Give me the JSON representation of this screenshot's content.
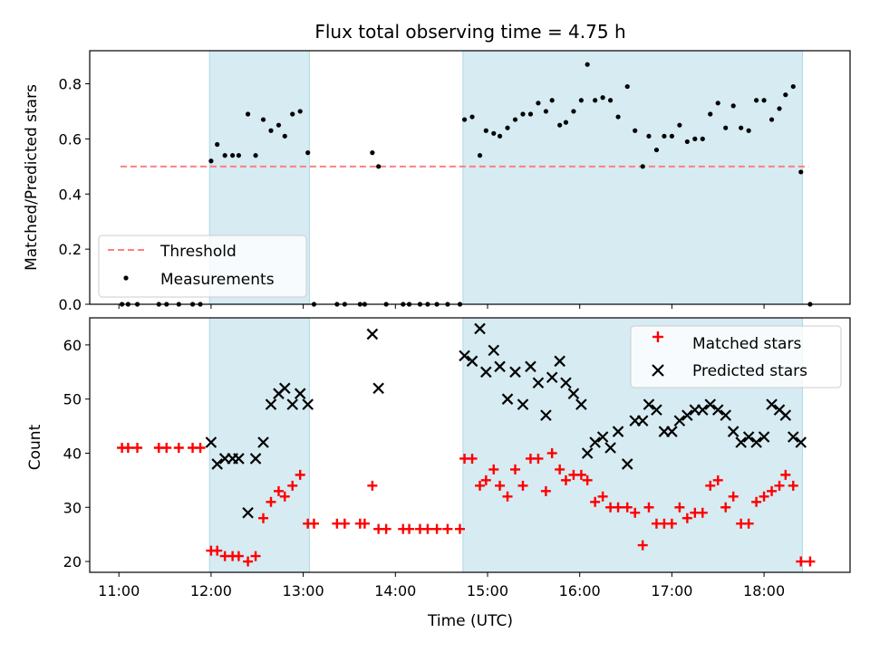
{
  "title": "Flux total observing time = 4.75 h",
  "colors": {
    "observing_band": "#add8e6",
    "threshold": "#ff7f7f",
    "measurement": "#000000",
    "matched": "#ff0000",
    "predicted": "#000000"
  },
  "chart_data": [
    {
      "type": "scatter",
      "panel": "top",
      "ylabel": "Matched/Predicted stars",
      "xlim": [
        "10:41",
        "18:56"
      ],
      "ylim": [
        0,
        0.92
      ],
      "yticks": [
        0.0,
        0.2,
        0.4,
        0.6,
        0.8
      ],
      "shaded_intervals": [
        [
          "11:59",
          "13:04"
        ],
        [
          "14:44",
          "18:25"
        ]
      ],
      "legend": {
        "position": "lower-left",
        "entries": [
          "Threshold",
          "Measurements"
        ]
      },
      "series": [
        {
          "name": "Threshold",
          "type": "line",
          "style": "dashed",
          "points": [
            [
              "11:01",
              0.5
            ],
            [
              "18:29",
              0.5
            ]
          ]
        },
        {
          "name": "Measurements",
          "type": "scatter",
          "points": [
            [
              "11:02",
              0.0
            ],
            [
              "11:06",
              0.0
            ],
            [
              "11:12",
              0.0
            ],
            [
              "11:26",
              0.0
            ],
            [
              "11:31",
              0.0
            ],
            [
              "11:39",
              0.0
            ],
            [
              "11:48",
              0.0
            ],
            [
              "11:53",
              0.0
            ],
            [
              "12:00",
              0.52
            ],
            [
              "12:04",
              0.58
            ],
            [
              "12:09",
              0.54
            ],
            [
              "12:14",
              0.54
            ],
            [
              "12:18",
              0.54
            ],
            [
              "12:24",
              0.69
            ],
            [
              "12:29",
              0.54
            ],
            [
              "12:34",
              0.67
            ],
            [
              "12:39",
              0.63
            ],
            [
              "12:44",
              0.65
            ],
            [
              "12:48",
              0.61
            ],
            [
              "12:53",
              0.69
            ],
            [
              "12:58",
              0.7
            ],
            [
              "13:03",
              0.55
            ],
            [
              "13:07",
              0.0
            ],
            [
              "13:22",
              0.0
            ],
            [
              "13:27",
              0.0
            ],
            [
              "13:37",
              0.0
            ],
            [
              "13:40",
              0.0
            ],
            [
              "13:45",
              0.55
            ],
            [
              "13:49",
              0.5
            ],
            [
              "13:54",
              0.0
            ],
            [
              "14:05",
              0.0
            ],
            [
              "14:09",
              0.0
            ],
            [
              "14:16",
              0.0
            ],
            [
              "14:21",
              0.0
            ],
            [
              "14:27",
              0.0
            ],
            [
              "14:34",
              0.0
            ],
            [
              "14:42",
              0.0
            ],
            [
              "14:45",
              0.67
            ],
            [
              "14:50",
              0.68
            ],
            [
              "14:55",
              0.54
            ],
            [
              "14:59",
              0.63
            ],
            [
              "15:04",
              0.62
            ],
            [
              "15:08",
              0.61
            ],
            [
              "15:13",
              0.64
            ],
            [
              "15:18",
              0.67
            ],
            [
              "15:23",
              0.69
            ],
            [
              "15:28",
              0.69
            ],
            [
              "15:33",
              0.73
            ],
            [
              "15:38",
              0.7
            ],
            [
              "15:42",
              0.74
            ],
            [
              "15:47",
              0.65
            ],
            [
              "15:51",
              0.66
            ],
            [
              "15:56",
              0.7
            ],
            [
              "16:01",
              0.74
            ],
            [
              "16:05",
              0.87
            ],
            [
              "16:10",
              0.74
            ],
            [
              "16:15",
              0.75
            ],
            [
              "16:20",
              0.74
            ],
            [
              "16:25",
              0.68
            ],
            [
              "16:31",
              0.79
            ],
            [
              "16:36",
              0.63
            ],
            [
              "16:41",
              0.5
            ],
            [
              "16:45",
              0.61
            ],
            [
              "16:50",
              0.56
            ],
            [
              "16:55",
              0.61
            ],
            [
              "17:00",
              0.61
            ],
            [
              "17:05",
              0.65
            ],
            [
              "17:10",
              0.59
            ],
            [
              "17:15",
              0.6
            ],
            [
              "17:20",
              0.6
            ],
            [
              "17:25",
              0.69
            ],
            [
              "17:30",
              0.73
            ],
            [
              "17:35",
              0.64
            ],
            [
              "17:40",
              0.72
            ],
            [
              "17:45",
              0.64
            ],
            [
              "17:50",
              0.63
            ],
            [
              "17:55",
              0.74
            ],
            [
              "18:00",
              0.74
            ],
            [
              "18:05",
              0.67
            ],
            [
              "18:10",
              0.71
            ],
            [
              "18:14",
              0.76
            ],
            [
              "18:19",
              0.79
            ],
            [
              "18:24",
              0.48
            ],
            [
              "18:30",
              0.0
            ]
          ]
        }
      ]
    },
    {
      "type": "scatter",
      "panel": "bottom",
      "xlabel": "Time (UTC)",
      "ylabel": "Count",
      "xlim": [
        "10:41",
        "18:56"
      ],
      "ylim": [
        18,
        65
      ],
      "xticks": [
        "11:00",
        "12:00",
        "13:00",
        "14:00",
        "15:00",
        "16:00",
        "17:00",
        "18:00"
      ],
      "yticks": [
        20,
        30,
        40,
        50,
        60
      ],
      "shaded_intervals": [
        [
          "11:59",
          "13:04"
        ],
        [
          "14:44",
          "18:25"
        ]
      ],
      "legend": {
        "position": "upper-right",
        "entries": [
          "Matched stars",
          "Predicted stars"
        ]
      },
      "series": [
        {
          "name": "Matched stars",
          "marker": "+",
          "points": [
            [
              "11:02",
              41
            ],
            [
              "11:06",
              41
            ],
            [
              "11:12",
              41
            ],
            [
              "11:26",
              41
            ],
            [
              "11:31",
              41
            ],
            [
              "11:39",
              41
            ],
            [
              "11:48",
              41
            ],
            [
              "11:53",
              41
            ],
            [
              "12:00",
              22
            ],
            [
              "12:04",
              22
            ],
            [
              "12:09",
              21
            ],
            [
              "12:14",
              21
            ],
            [
              "12:18",
              21
            ],
            [
              "12:24",
              20
            ],
            [
              "12:29",
              21
            ],
            [
              "12:34",
              28
            ],
            [
              "12:39",
              31
            ],
            [
              "12:44",
              33
            ],
            [
              "12:48",
              32
            ],
            [
              "12:53",
              34
            ],
            [
              "12:58",
              36
            ],
            [
              "13:03",
              27
            ],
            [
              "13:07",
              27
            ],
            [
              "13:22",
              27
            ],
            [
              "13:27",
              27
            ],
            [
              "13:37",
              27
            ],
            [
              "13:40",
              27
            ],
            [
              "13:45",
              34
            ],
            [
              "13:49",
              26
            ],
            [
              "13:54",
              26
            ],
            [
              "14:05",
              26
            ],
            [
              "14:09",
              26
            ],
            [
              "14:16",
              26
            ],
            [
              "14:21",
              26
            ],
            [
              "14:27",
              26
            ],
            [
              "14:34",
              26
            ],
            [
              "14:42",
              26
            ],
            [
              "14:45",
              39
            ],
            [
              "14:50",
              39
            ],
            [
              "14:55",
              34
            ],
            [
              "14:59",
              35
            ],
            [
              "15:04",
              37
            ],
            [
              "15:08",
              34
            ],
            [
              "15:13",
              32
            ],
            [
              "15:18",
              37
            ],
            [
              "15:23",
              34
            ],
            [
              "15:28",
              39
            ],
            [
              "15:33",
              39
            ],
            [
              "15:38",
              33
            ],
            [
              "15:42",
              40
            ],
            [
              "15:47",
              37
            ],
            [
              "15:51",
              35
            ],
            [
              "15:56",
              36
            ],
            [
              "16:01",
              36
            ],
            [
              "16:05",
              35
            ],
            [
              "16:10",
              31
            ],
            [
              "16:15",
              32
            ],
            [
              "16:20",
              30
            ],
            [
              "16:25",
              30
            ],
            [
              "16:31",
              30
            ],
            [
              "16:36",
              29
            ],
            [
              "16:41",
              23
            ],
            [
              "16:45",
              30
            ],
            [
              "16:50",
              27
            ],
            [
              "16:55",
              27
            ],
            [
              "17:00",
              27
            ],
            [
              "17:05",
              30
            ],
            [
              "17:10",
              28
            ],
            [
              "17:15",
              29
            ],
            [
              "17:20",
              29
            ],
            [
              "17:25",
              34
            ],
            [
              "17:30",
              35
            ],
            [
              "17:35",
              30
            ],
            [
              "17:40",
              32
            ],
            [
              "17:45",
              27
            ],
            [
              "17:50",
              27
            ],
            [
              "17:55",
              31
            ],
            [
              "18:00",
              32
            ],
            [
              "18:05",
              33
            ],
            [
              "18:10",
              34
            ],
            [
              "18:14",
              36
            ],
            [
              "18:19",
              34
            ],
            [
              "18:24",
              20
            ],
            [
              "18:30",
              20
            ]
          ]
        },
        {
          "name": "Predicted stars",
          "marker": "x",
          "points": [
            [
              "12:00",
              42
            ],
            [
              "12:04",
              38
            ],
            [
              "12:09",
              39
            ],
            [
              "12:14",
              39
            ],
            [
              "12:18",
              39
            ],
            [
              "12:24",
              29
            ],
            [
              "12:29",
              39
            ],
            [
              "12:34",
              42
            ],
            [
              "12:39",
              49
            ],
            [
              "12:44",
              51
            ],
            [
              "12:48",
              52
            ],
            [
              "12:53",
              49
            ],
            [
              "12:58",
              51
            ],
            [
              "13:03",
              49
            ],
            [
              "13:45",
              62
            ],
            [
              "13:49",
              52
            ],
            [
              "14:45",
              58
            ],
            [
              "14:50",
              57
            ],
            [
              "14:55",
              63
            ],
            [
              "14:59",
              55
            ],
            [
              "15:04",
              59
            ],
            [
              "15:08",
              56
            ],
            [
              "15:13",
              50
            ],
            [
              "15:18",
              55
            ],
            [
              "15:23",
              49
            ],
            [
              "15:28",
              56
            ],
            [
              "15:33",
              53
            ],
            [
              "15:38",
              47
            ],
            [
              "15:42",
              54
            ],
            [
              "15:47",
              57
            ],
            [
              "15:51",
              53
            ],
            [
              "15:56",
              51
            ],
            [
              "16:01",
              49
            ],
            [
              "16:05",
              40
            ],
            [
              "16:10",
              42
            ],
            [
              "16:15",
              43
            ],
            [
              "16:20",
              41
            ],
            [
              "16:25",
              44
            ],
            [
              "16:31",
              38
            ],
            [
              "16:36",
              46
            ],
            [
              "16:41",
              46
            ],
            [
              "16:45",
              49
            ],
            [
              "16:50",
              48
            ],
            [
              "16:55",
              44
            ],
            [
              "17:00",
              44
            ],
            [
              "17:05",
              46
            ],
            [
              "17:10",
              47
            ],
            [
              "17:15",
              48
            ],
            [
              "17:20",
              48
            ],
            [
              "17:25",
              49
            ],
            [
              "17:30",
              48
            ],
            [
              "17:35",
              47
            ],
            [
              "17:40",
              44
            ],
            [
              "17:45",
              42
            ],
            [
              "17:50",
              43
            ],
            [
              "17:55",
              42
            ],
            [
              "18:00",
              43
            ],
            [
              "18:05",
              49
            ],
            [
              "18:10",
              48
            ],
            [
              "18:14",
              47
            ],
            [
              "18:19",
              43
            ],
            [
              "18:24",
              42
            ]
          ]
        }
      ]
    }
  ]
}
